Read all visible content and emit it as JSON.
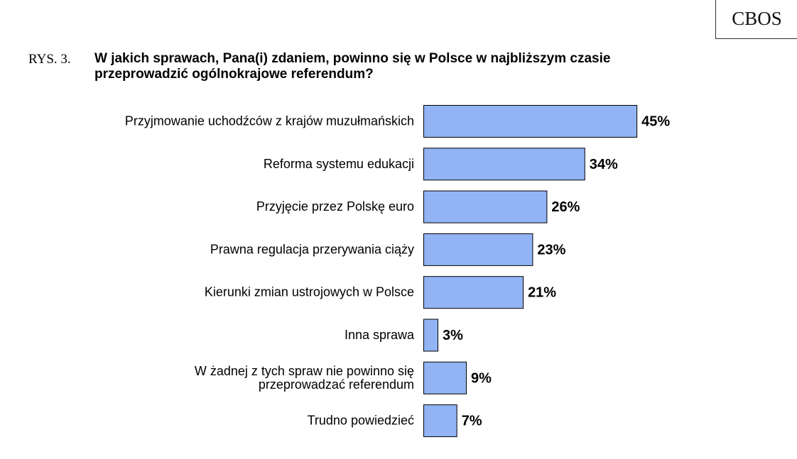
{
  "header": {
    "logo": "CBOS",
    "figure_number": "RYS. 3.",
    "title_line1": "W jakich sprawach, Pana(i) zdaniem, powinno się w Polsce w najbliższym czasie",
    "title_line2": "przeprowadzić ogólnokrajowe referendum?"
  },
  "chart_data": {
    "type": "bar",
    "orientation": "horizontal",
    "categories": [
      [
        "Przyjmowanie uchodźców z krajów muzułmańskich"
      ],
      [
        "Reforma systemu edukacji"
      ],
      [
        "Przyjęcie przez Polskę euro"
      ],
      [
        "Prawna regulacja przerywania ciąży"
      ],
      [
        "Kierunki zmian ustrojowych w Polsce"
      ],
      [
        "Inna sprawa"
      ],
      [
        "W żadnej z tych spraw nie powinno się",
        "przeprowadzać referendum"
      ],
      [
        "Trudno powiedzieć"
      ]
    ],
    "values": [
      45,
      34,
      26,
      23,
      21,
      3,
      9,
      7
    ],
    "value_labels": [
      "45%",
      "34%",
      "26%",
      "23%",
      "21%",
      "3%",
      "9%",
      "7%"
    ],
    "unit": "%",
    "bar_color": "#92b4f4",
    "grid": false,
    "legend": false
  }
}
